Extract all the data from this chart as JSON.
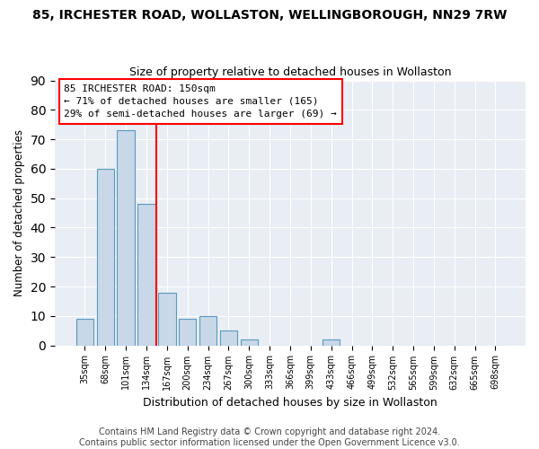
{
  "title": "85, IRCHESTER ROAD, WOLLASTON, WELLINGBOROUGH, NN29 7RW",
  "subtitle": "Size of property relative to detached houses in Wollaston",
  "xlabel": "Distribution of detached houses by size in Wollaston",
  "ylabel": "Number of detached properties",
  "bar_color": "#c8d8e8",
  "bar_edge_color": "#5a9abf",
  "plot_bg_color": "#e8eef4",
  "categories": [
    "35sqm",
    "68sqm",
    "101sqm",
    "134sqm",
    "167sqm",
    "200sqm",
    "234sqm",
    "267sqm",
    "300sqm",
    "333sqm",
    "366sqm",
    "399sqm",
    "433sqm",
    "466sqm",
    "499sqm",
    "532sqm",
    "565sqm",
    "599sqm",
    "632sqm",
    "665sqm",
    "698sqm"
  ],
  "values": [
    9,
    60,
    73,
    48,
    18,
    9,
    10,
    5,
    2,
    0,
    0,
    0,
    2,
    0,
    0,
    0,
    0,
    0,
    0,
    0,
    0
  ],
  "property_line_x": 3.5,
  "property_line_label": "85 IRCHESTER ROAD: 150sqm",
  "annotation_line1": "← 71% of detached houses are smaller (165)",
  "annotation_line2": "29% of semi-detached houses are larger (69) →",
  "ylim": [
    0,
    90
  ],
  "yticks": [
    0,
    10,
    20,
    30,
    40,
    50,
    60,
    70,
    80,
    90
  ],
  "footnote1": "Contains HM Land Registry data © Crown copyright and database right 2024.",
  "footnote2": "Contains public sector information licensed under the Open Government Licence v3.0.",
  "title_fontsize": 10,
  "subtitle_fontsize": 9,
  "xlabel_fontsize": 9,
  "ylabel_fontsize": 8.5,
  "tick_fontsize": 7,
  "annotation_fontsize": 8,
  "footnote_fontsize": 7
}
